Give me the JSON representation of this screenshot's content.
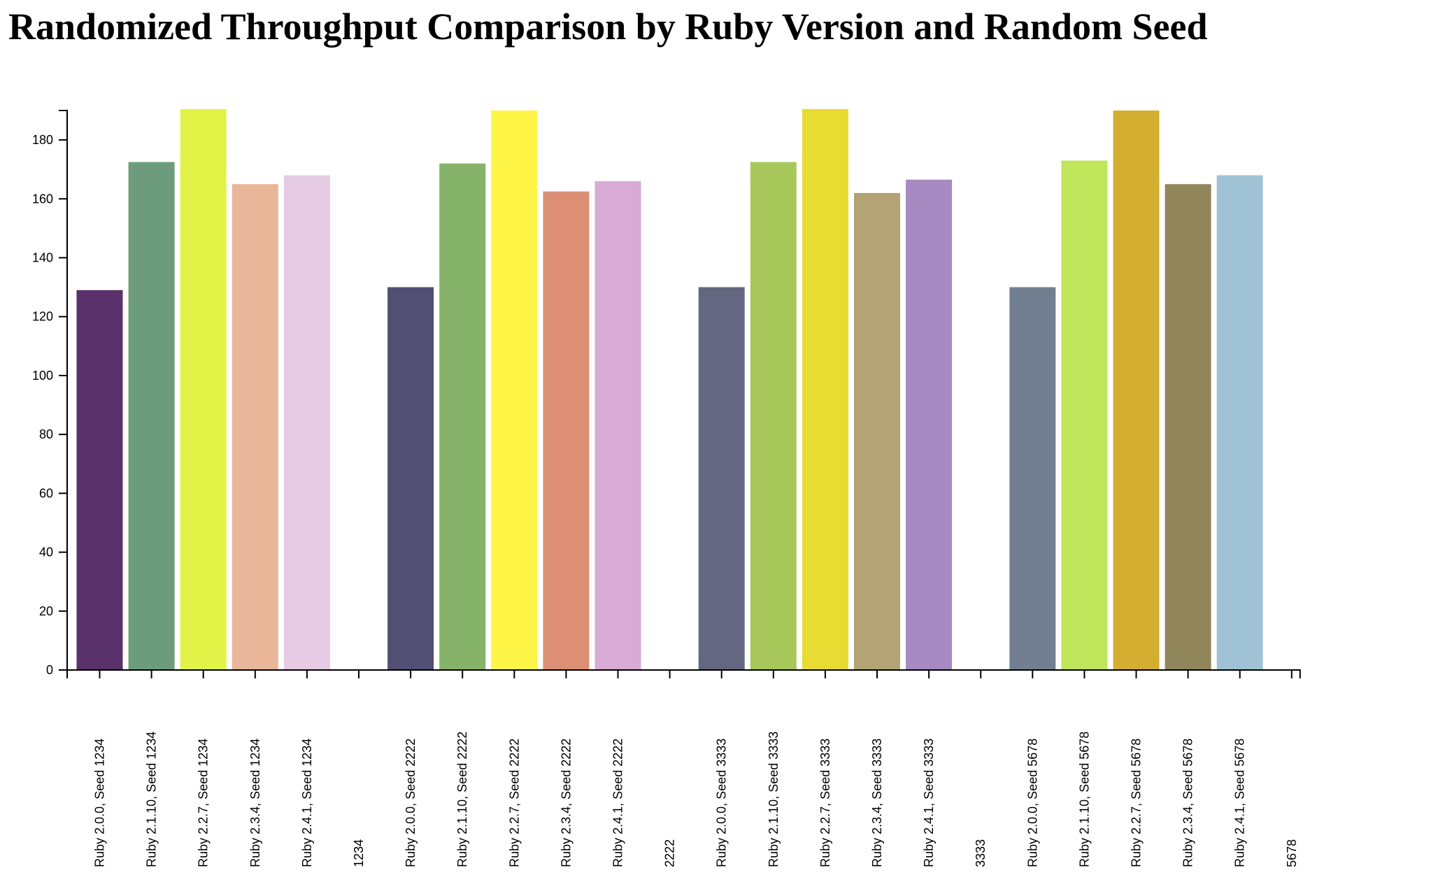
{
  "chart_data": {
    "type": "bar",
    "title": "Randomized Throughput Comparison by Ruby Version and Random Seed",
    "xlabel": "",
    "ylabel": "",
    "ylim": [
      0,
      190
    ],
    "yticks": [
      0,
      20,
      40,
      60,
      80,
      100,
      120,
      140,
      160,
      180
    ],
    "grid": false,
    "legend": "none",
    "categories": [
      "Ruby 2.0.0, Seed 1234",
      "Ruby 2.1.10, Seed 1234",
      "Ruby 2.2.7, Seed 1234",
      "Ruby 2.3.4, Seed 1234",
      "Ruby 2.4.1, Seed 1234",
      "1234",
      "Ruby 2.0.0, Seed 2222",
      "Ruby 2.1.10, Seed 2222",
      "Ruby 2.2.7, Seed 2222",
      "Ruby 2.3.4, Seed 2222",
      "Ruby 2.4.1, Seed 2222",
      "2222",
      "Ruby 2.0.0, Seed 3333",
      "Ruby 2.1.10, Seed 3333",
      "Ruby 2.2.7, Seed 3333",
      "Ruby 2.3.4, Seed 3333",
      "Ruby 2.4.1, Seed 3333",
      "3333",
      "Ruby 2.0.0, Seed 5678",
      "Ruby 2.1.10, Seed 5678",
      "Ruby 2.2.7, Seed 5678",
      "Ruby 2.3.4, Seed 5678",
      "Ruby 2.4.1, Seed 5678",
      "5678"
    ],
    "values": [
      129,
      172.5,
      190.5,
      165,
      168,
      null,
      130,
      172,
      190,
      162.5,
      166,
      null,
      130,
      172.5,
      190.5,
      162,
      166.5,
      null,
      130,
      173,
      190,
      165,
      168,
      null
    ],
    "colors": [
      "#5a326b",
      "#6d9c7d",
      "#e1f346",
      "#e9b699",
      "#e6cbe5",
      "",
      "#524f75",
      "#86b36a",
      "#fff547",
      "#dc8f74",
      "#d8aad6",
      "",
      "#646780",
      "#a8c75b",
      "#e8db31",
      "#b2a474",
      "#a78ac1",
      "",
      "#717f91",
      "#c0e65b",
      "#d4ae31",
      "#91855c",
      "#9fc2d4",
      ""
    ]
  }
}
